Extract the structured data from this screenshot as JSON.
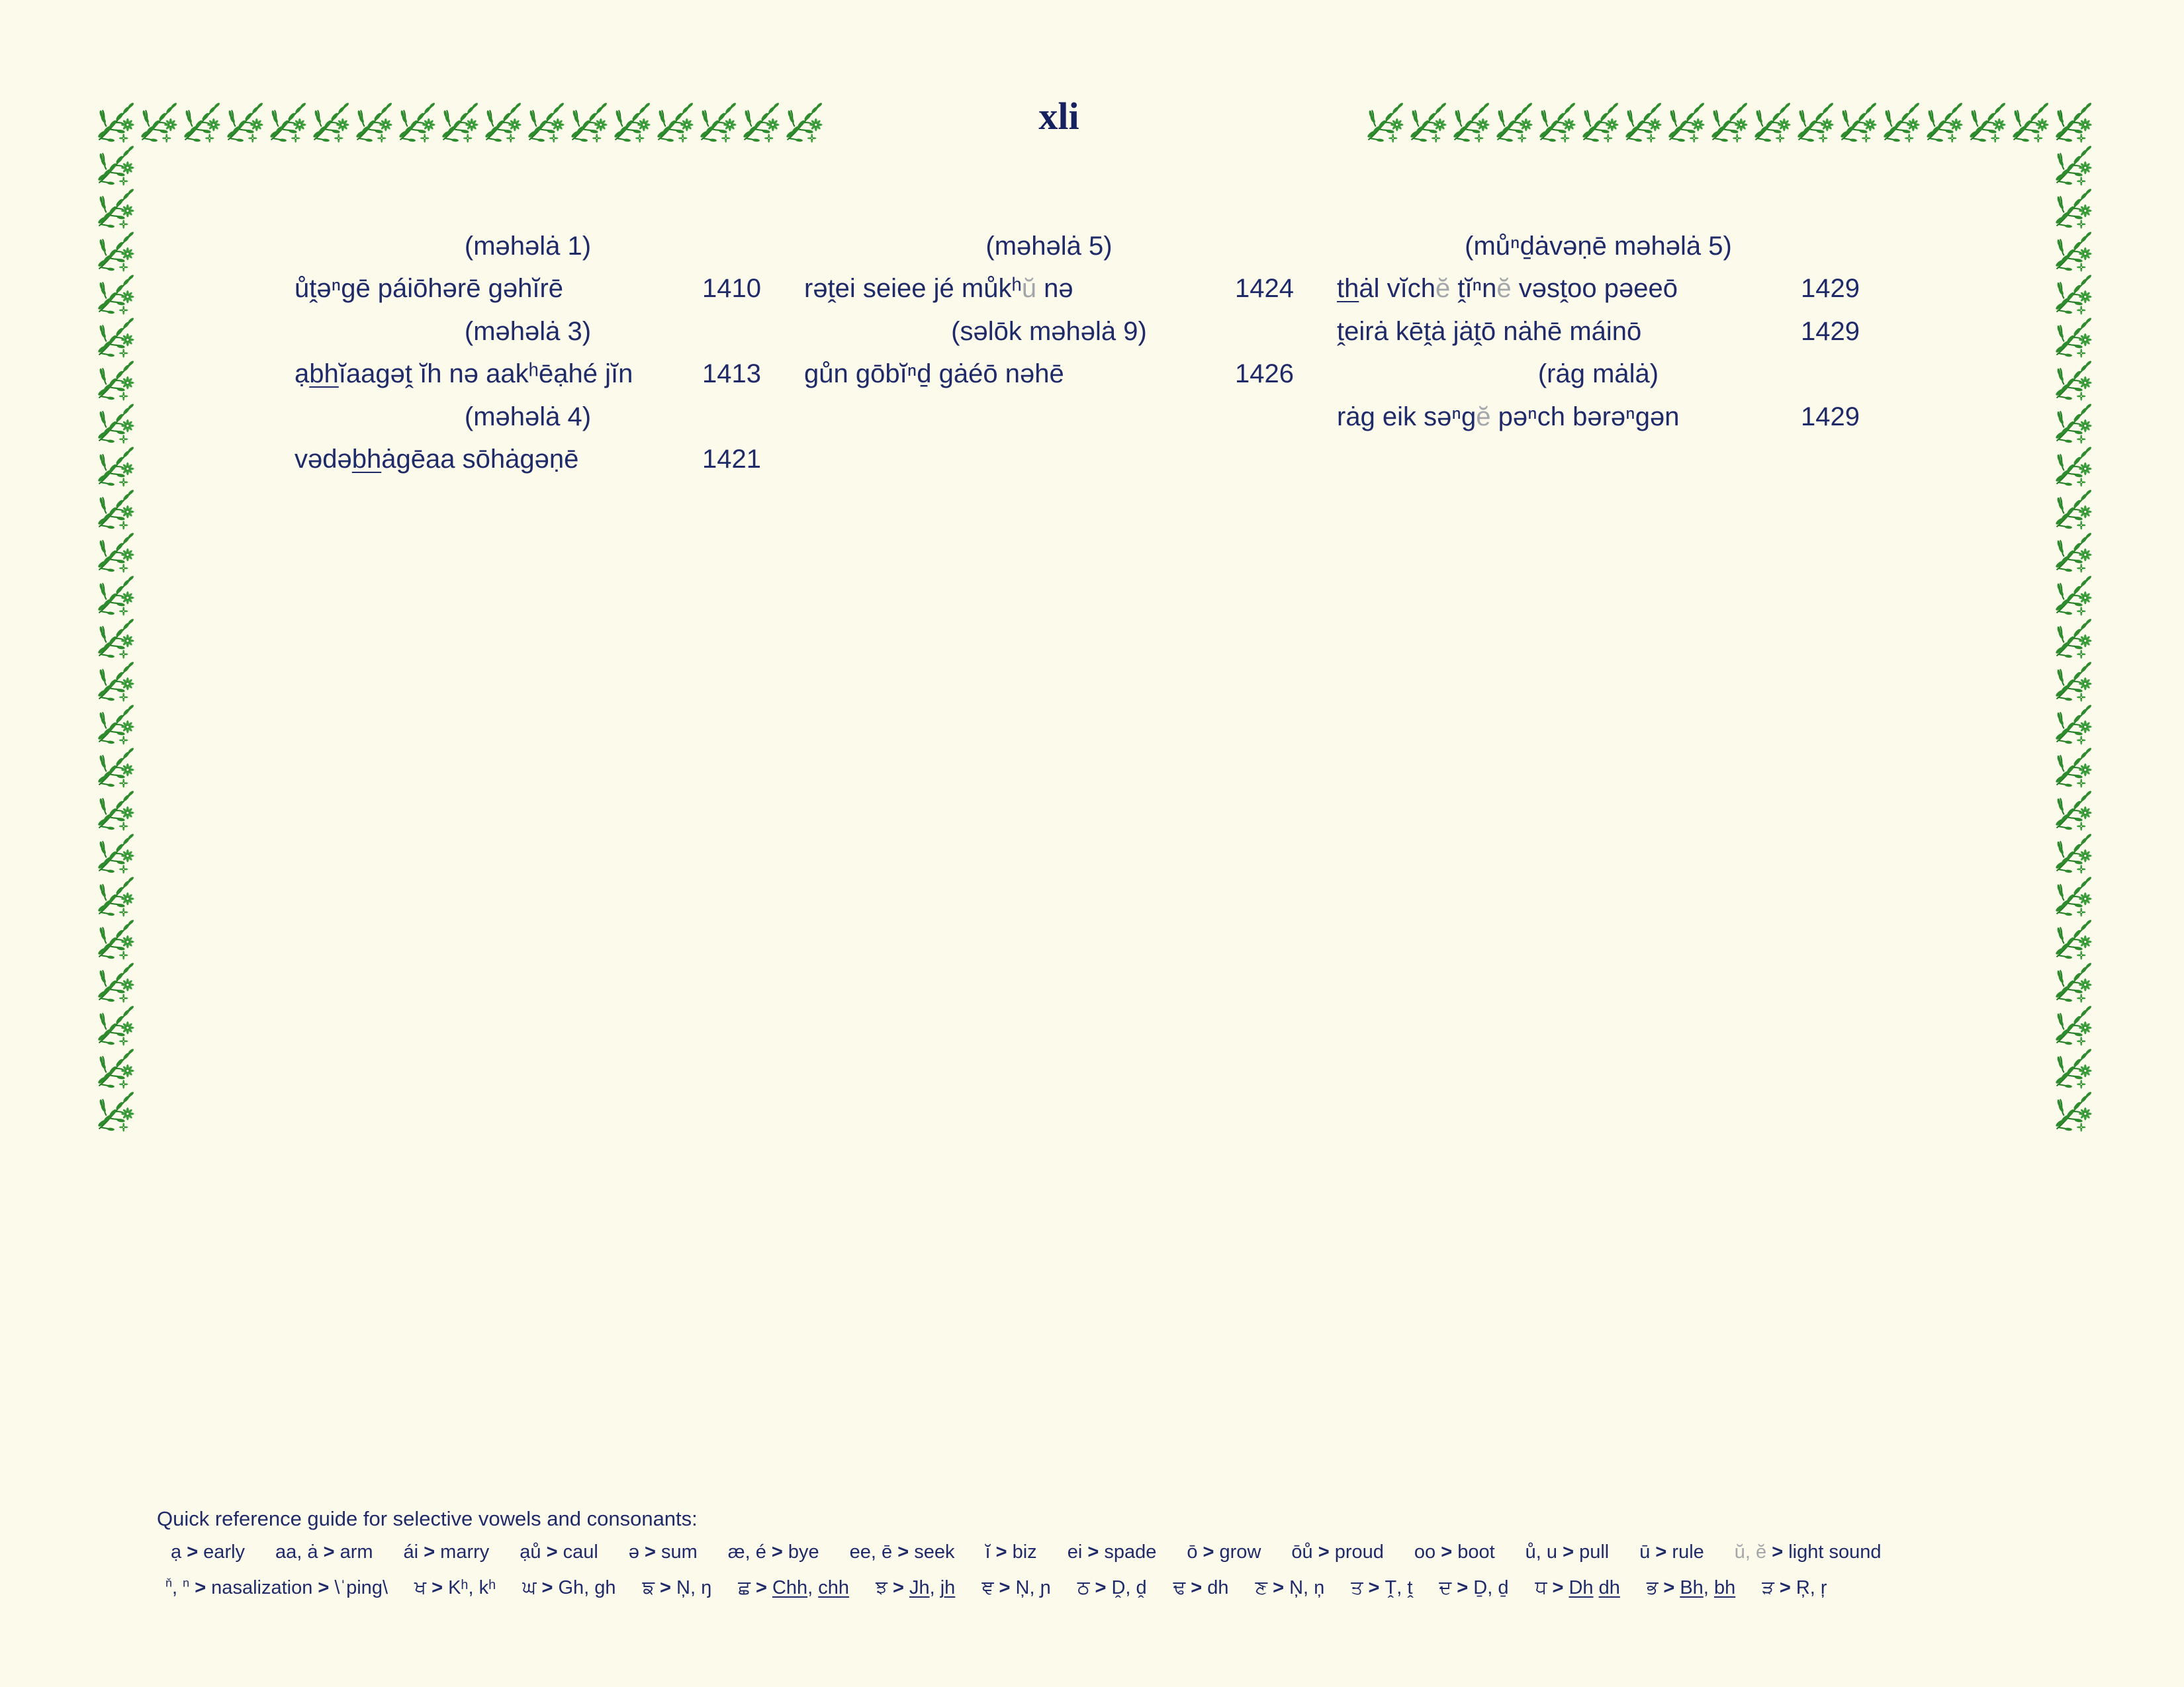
{
  "page": {
    "roman_numeral": "xli"
  },
  "toc": {
    "columns": [
      {
        "rows": [
          {
            "type": "header",
            "segments": [
              {
                "t": "(məhəlȧ 1)"
              }
            ]
          },
          {
            "type": "entry",
            "segments": [
              {
                "t": "ůṱəⁿgē páiōhərē gəhĭrē"
              }
            ],
            "page": "1410"
          },
          {
            "type": "header",
            "segments": [
              {
                "t": "(məhəlȧ 3)"
              }
            ]
          },
          {
            "type": "entry",
            "segments": [
              {
                "t": "ạ"
              },
              {
                "t": "bh",
                "u": true
              },
              {
                "t": "ĭaagəṱ ĭh nə aakʰēạhé jĭn"
              }
            ],
            "page": "1413"
          },
          {
            "type": "header",
            "segments": [
              {
                "t": "(məhəlȧ 4)"
              }
            ]
          },
          {
            "type": "entry",
            "segments": [
              {
                "t": "vədə"
              },
              {
                "t": "bh",
                "u": true
              },
              {
                "t": "ȧgēaa sōhȧgəṇē"
              }
            ],
            "page": "1421"
          }
        ]
      },
      {
        "rows": [
          {
            "type": "header",
            "segments": [
              {
                "t": "(məhəlȧ 5)"
              }
            ]
          },
          {
            "type": "entry",
            "segments": [
              {
                "t": "rəṱei seiee jé můkʰ"
              },
              {
                "t": "ŭ",
                "light": true
              },
              {
                "t": " nə"
              }
            ],
            "page": "1424"
          },
          {
            "type": "header",
            "segments": [
              {
                "t": "(səlōk məhəlȧ 9)"
              }
            ]
          },
          {
            "type": "entry",
            "segments": [
              {
                "t": "gůn gōbĭⁿḏ gȧéō nəhē"
              }
            ],
            "page": "1426"
          }
        ]
      },
      {
        "rows": [
          {
            "type": "header",
            "segments": [
              {
                "t": "(můⁿḏȧvəṇē məhəlȧ 5)"
              }
            ]
          },
          {
            "type": "entry",
            "segments": [
              {
                "t": "th",
                "u": true
              },
              {
                "t": "ȧl vĭch"
              },
              {
                "t": "ĕ",
                "light": true
              },
              {
                "t": " ṱĭⁿn"
              },
              {
                "t": "ĕ",
                "light": true
              },
              {
                "t": " vəsṱoo pəeeō"
              }
            ],
            "page": "1429"
          },
          {
            "type": "entry",
            "segments": [
              {
                "t": "ṱeirȧ kēṱȧ jȧṱō nȧhē máinō"
              }
            ],
            "page": "1429"
          },
          {
            "type": "header",
            "segments": [
              {
                "t": "(rȧg mȧlȧ)"
              }
            ]
          },
          {
            "type": "entry",
            "segments": [
              {
                "t": "rȧg eik səⁿg"
              },
              {
                "t": "ĕ",
                "light": true
              },
              {
                "t": " pəⁿch bərəⁿgən"
              }
            ],
            "page": "1429"
          }
        ]
      }
    ]
  },
  "guide": {
    "heading": "Quick reference guide for selective vowels and consonants:",
    "vowel_items": [
      [
        {
          "t": "ạ > early"
        }
      ],
      [
        {
          "t": "aa, ȧ > arm"
        }
      ],
      [
        {
          "t": "ái > marry"
        }
      ],
      [
        {
          "t": "ạů > caul"
        }
      ],
      [
        {
          "t": "ə > sum"
        }
      ],
      [
        {
          "t": "æ, é > bye"
        }
      ],
      [
        {
          "t": "ee, ē > seek"
        }
      ],
      [
        {
          "t": "ĭ > biz"
        }
      ],
      [
        {
          "t": "ei > spade"
        }
      ],
      [
        {
          "t": "ō > grow"
        }
      ],
      [
        {
          "t": "ōů > proud"
        }
      ],
      [
        {
          "t": "oo > boot"
        }
      ],
      [
        {
          "t": "ů, u > pull"
        }
      ],
      [
        {
          "t": "ū > rule"
        }
      ],
      [
        {
          "t": "ŭ, ĕ",
          "light": true
        },
        {
          "t": " > light sound"
        }
      ]
    ],
    "consonant_items": [
      [
        {
          "t": "ň",
          "sup": true
        },
        {
          "t": ", "
        },
        {
          "t": "n",
          "sup": true
        },
        {
          "t": " > nasalization > \\ˈping\\"
        }
      ],
      [
        {
          "t": "ਖ",
          "guru": true
        },
        {
          "t": " > Kʰ, kʰ"
        }
      ],
      [
        {
          "t": "ਘ",
          "guru": true
        },
        {
          "t": " > Gh, gh"
        }
      ],
      [
        {
          "t": "ਙ",
          "guru": true
        },
        {
          "t": " > Ņ, ŋ"
        }
      ],
      [
        {
          "t": "ਛ",
          "guru": true
        },
        {
          "t": " > "
        },
        {
          "t": "Chh",
          "u": true
        },
        {
          "t": ", "
        },
        {
          "t": "chh",
          "u": true
        }
      ],
      [
        {
          "t": "ਝ",
          "guru": true
        },
        {
          "t": " > "
        },
        {
          "t": "Jh",
          "u": true
        },
        {
          "t": ", "
        },
        {
          "t": "jh",
          "u": true
        }
      ],
      [
        {
          "t": "ਞ",
          "guru": true
        },
        {
          "t": " > Ņ, ɲ"
        }
      ],
      [
        {
          "t": "ਠ",
          "guru": true
        },
        {
          "t": " > Ḓ, ḓ"
        }
      ],
      [
        {
          "t": "ਢ",
          "guru": true
        },
        {
          "t": " > dh"
        }
      ],
      [
        {
          "t": "ਣ",
          "guru": true
        },
        {
          "t": " > Ņ, ņ"
        }
      ],
      [
        {
          "t": "ਤ",
          "guru": true
        },
        {
          "t": " > Ṱ, ṱ"
        }
      ],
      [
        {
          "t": "ਦ",
          "guru": true
        },
        {
          "t": " > Ḏ, ḏ"
        }
      ],
      [
        {
          "t": "ਧ",
          "guru": true
        },
        {
          "t": " > "
        },
        {
          "t": "Dh",
          "u": true
        },
        {
          "t": " "
        },
        {
          "t": "dh",
          "u": true
        }
      ],
      [
        {
          "t": "ਭ",
          "guru": true
        },
        {
          "t": " > "
        },
        {
          "t": "Bh",
          "u": true
        },
        {
          "t": ", "
        },
        {
          "t": "bh",
          "u": true
        }
      ],
      [
        {
          "t": "ੜ",
          "guru": true
        },
        {
          "t": " > Ŗ, ŗ"
        }
      ]
    ]
  },
  "decor": {
    "top_left_units": 17,
    "top_right_units": 17,
    "left_units": 24,
    "right_units": 24
  },
  "colors": {
    "background": "#fcfaeb",
    "text_navy": "#1f2a68",
    "light_gray": "#a3a7ab",
    "border_green": "#2e8b2e"
  }
}
